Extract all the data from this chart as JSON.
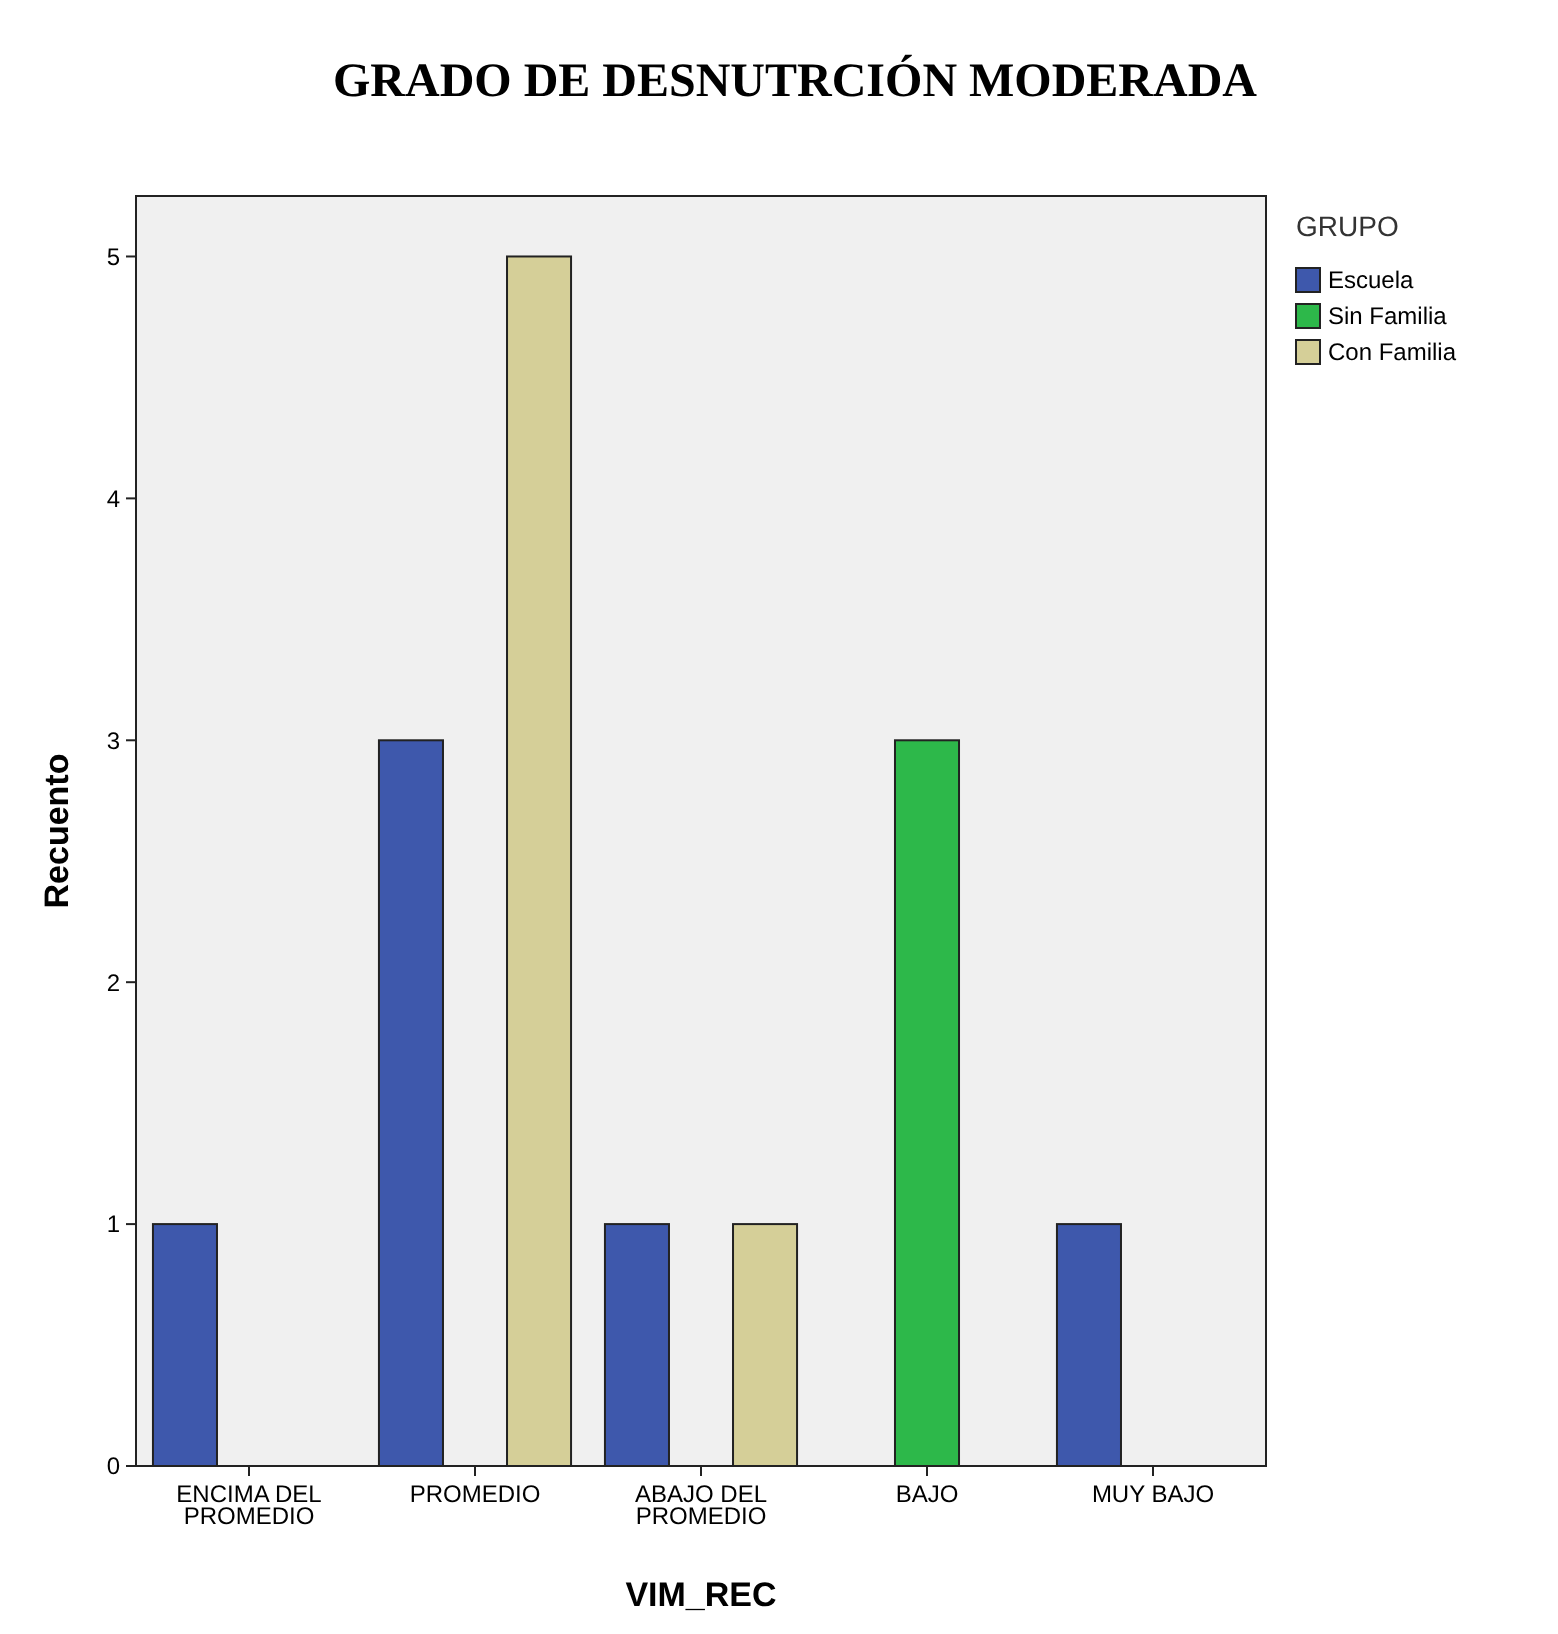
{
  "chart_data": {
    "type": "bar",
    "title": "GRADO DE DESNUTRCIÓN MODERADA",
    "xlabel": "VIM_REC",
    "ylabel": "Recuento",
    "legend_title": "GRUPO",
    "legend": "right",
    "categories": [
      "ENCIMA DEL PROMEDIO",
      "PROMEDIO",
      "ABAJO DEL PROMEDIO",
      "BAJO",
      "MUY BAJO"
    ],
    "series": [
      {
        "name": "Escuela",
        "color": "#3e58ac",
        "values": [
          1,
          3,
          1,
          null,
          1
        ]
      },
      {
        "name": "Sin Familia",
        "color": "#2db84a",
        "values": [
          null,
          null,
          null,
          3,
          null
        ]
      },
      {
        "name": "Con Familia",
        "color": "#d5cf98",
        "values": [
          null,
          5,
          1,
          null,
          null
        ]
      }
    ],
    "ylim": [
      0,
      5.25
    ],
    "yticks": [
      0,
      1,
      2,
      3,
      4,
      5
    ],
    "grid": false
  }
}
